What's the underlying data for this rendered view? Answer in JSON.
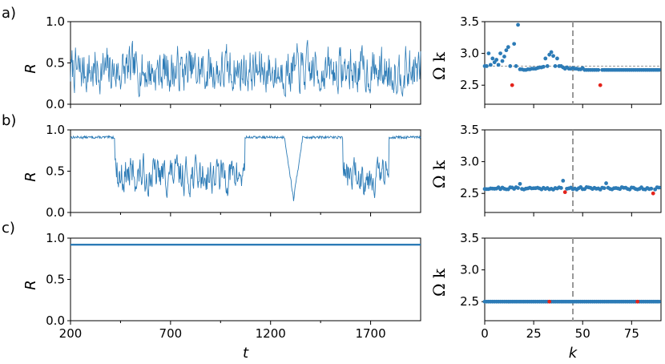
{
  "panel_labels": [
    "a)",
    "b)",
    "c)"
  ],
  "colors": {
    "series": "#2c7bb6",
    "highlight": "#e4231b",
    "reference": "#999999"
  },
  "chart_data": [
    {
      "id": "a-left",
      "type": "line",
      "ylabel": "R",
      "xlim": [
        200,
        1950
      ],
      "ylim": [
        0,
        1
      ],
      "yticks": [
        "0.0",
        "0.5",
        "1.0"
      ],
      "xticks": [],
      "regime": "chaotic",
      "mean": 0.4,
      "amplitude": 0.45,
      "seed": 7
    },
    {
      "id": "a-right",
      "type": "scatter",
      "ylabel": "Ω k",
      "xlim": [
        0,
        90
      ],
      "ylim": [
        2.2,
        3.5
      ],
      "yticks": [
        "2.5",
        "3.0",
        "3.5"
      ],
      "xticks": [],
      "vline": 45,
      "hline": 2.8,
      "points": [
        [
          0,
          2.8
        ],
        [
          1,
          2.8
        ],
        [
          2,
          3.0
        ],
        [
          3,
          2.82
        ],
        [
          4,
          2.92
        ],
        [
          5,
          2.86
        ],
        [
          6,
          2.9
        ],
        [
          7,
          2.82
        ],
        [
          8,
          3.0
        ],
        [
          9,
          2.88
        ],
        [
          10,
          2.95
        ],
        [
          11,
          3.05
        ],
        [
          12,
          3.1
        ],
        [
          13,
          2.8
        ],
        [
          14,
          3.0
        ],
        [
          15,
          3.15
        ],
        [
          16,
          2.8
        ],
        [
          17,
          3.45
        ],
        [
          18,
          2.75
        ],
        [
          19,
          2.75
        ],
        [
          20,
          2.74
        ],
        [
          21,
          2.74
        ],
        [
          22,
          2.75
        ],
        [
          23,
          2.75
        ],
        [
          24,
          2.76
        ],
        [
          25,
          2.76
        ],
        [
          26,
          2.76
        ],
        [
          27,
          2.77
        ],
        [
          28,
          2.78
        ],
        [
          29,
          2.78
        ],
        [
          30,
          2.79
        ],
        [
          31,
          2.92
        ],
        [
          32,
          2.8
        ],
        [
          33,
          2.98
        ],
        [
          34,
          3.02
        ],
        [
          35,
          2.96
        ],
        [
          36,
          2.8
        ],
        [
          37,
          2.92
        ],
        [
          38,
          2.8
        ],
        [
          39,
          2.8
        ],
        [
          40,
          2.78
        ],
        [
          41,
          2.76
        ],
        [
          42,
          2.78
        ],
        [
          43,
          2.76
        ],
        [
          44,
          2.76
        ],
        [
          45,
          2.77
        ],
        [
          46,
          2.76
        ],
        [
          47,
          2.76
        ],
        [
          48,
          2.75
        ],
        [
          49,
          2.75
        ],
        [
          50,
          2.77
        ],
        [
          51,
          2.74
        ],
        [
          52,
          2.74
        ],
        [
          53,
          2.74
        ],
        [
          54,
          2.74
        ],
        [
          55,
          2.74
        ],
        [
          56,
          2.74
        ],
        [
          57,
          2.74
        ],
        [
          58,
          2.74
        ],
        [
          59,
          2.74
        ],
        [
          60,
          2.74
        ],
        [
          61,
          2.74
        ],
        [
          62,
          2.74
        ],
        [
          63,
          2.74
        ],
        [
          64,
          2.74
        ],
        [
          65,
          2.74
        ],
        [
          66,
          2.74
        ],
        [
          67,
          2.74
        ],
        [
          68,
          2.74
        ],
        [
          69,
          2.74
        ],
        [
          70,
          2.74
        ],
        [
          71,
          2.74
        ],
        [
          72,
          2.74
        ],
        [
          73,
          2.74
        ],
        [
          74,
          2.74
        ],
        [
          75,
          2.74
        ],
        [
          76,
          2.74
        ],
        [
          77,
          2.74
        ],
        [
          78,
          2.74
        ],
        [
          79,
          2.74
        ],
        [
          80,
          2.74
        ],
        [
          81,
          2.74
        ],
        [
          82,
          2.74
        ],
        [
          83,
          2.74
        ],
        [
          84,
          2.74
        ],
        [
          85,
          2.74
        ],
        [
          86,
          2.74
        ],
        [
          87,
          2.74
        ],
        [
          88,
          2.74
        ],
        [
          89,
          2.74
        ]
      ],
      "highlight_points": [
        [
          14,
          2.5
        ],
        [
          59,
          2.5
        ]
      ]
    },
    {
      "id": "b-left",
      "type": "line",
      "ylabel": "R",
      "xlim": [
        200,
        1950
      ],
      "ylim": [
        0,
        1
      ],
      "yticks": [
        "0.0",
        "0.5",
        "1.0"
      ],
      "xticks": [],
      "regime": "intermittent",
      "synced_level": 0.91,
      "segments": [
        {
          "from": 200,
          "to": 420,
          "mode": "sync"
        },
        {
          "from": 420,
          "to": 1070,
          "mode": "chaos"
        },
        {
          "from": 1070,
          "to": 1270,
          "mode": "sync"
        },
        {
          "from": 1270,
          "to": 1360,
          "mode": "dip"
        },
        {
          "from": 1360,
          "to": 1560,
          "mode": "sync"
        },
        {
          "from": 1560,
          "to": 1790,
          "mode": "chaos"
        },
        {
          "from": 1790,
          "to": 1950,
          "mode": "sync"
        }
      ],
      "seed": 13
    },
    {
      "id": "b-right",
      "type": "scatter",
      "ylabel": "Ω k",
      "xlim": [
        0,
        90
      ],
      "ylim": [
        2.2,
        3.5
      ],
      "yticks": [
        "2.5",
        "3.0",
        "3.5"
      ],
      "xticks": [],
      "vline": 45,
      "hline": 2.58,
      "baseline": 2.58,
      "spread": 0.02,
      "outliers": [
        [
          18,
          2.65
        ],
        [
          40,
          2.7
        ],
        [
          62,
          2.66
        ]
      ],
      "highlight_points": [
        [
          41,
          2.52
        ],
        [
          86,
          2.5
        ]
      ],
      "n": 90,
      "seed": 21
    },
    {
      "id": "c-left",
      "type": "line",
      "ylabel": "R",
      "xlim": [
        200,
        1950
      ],
      "ylim": [
        0,
        1
      ],
      "yticks": [
        "0.0",
        "0.5",
        "1.0"
      ],
      "xticks": [
        "200",
        "700",
        "1200",
        "1700"
      ],
      "xlabel": "t",
      "regime": "constant",
      "level": 0.92
    },
    {
      "id": "c-right",
      "type": "scatter",
      "ylabel": "Ω k",
      "xlabel": "k",
      "xlim": [
        0,
        90
      ],
      "ylim": [
        2.2,
        3.5
      ],
      "yticks": [
        "2.5",
        "3.0",
        "3.5"
      ],
      "xticks": [
        "0",
        "25",
        "50",
        "75"
      ],
      "vline": 45,
      "hline": 2.5,
      "baseline": 2.5,
      "spread": 0.0,
      "highlight_points": [
        [
          33,
          2.5
        ],
        [
          78,
          2.5
        ]
      ],
      "n": 90,
      "seed": 3
    }
  ]
}
